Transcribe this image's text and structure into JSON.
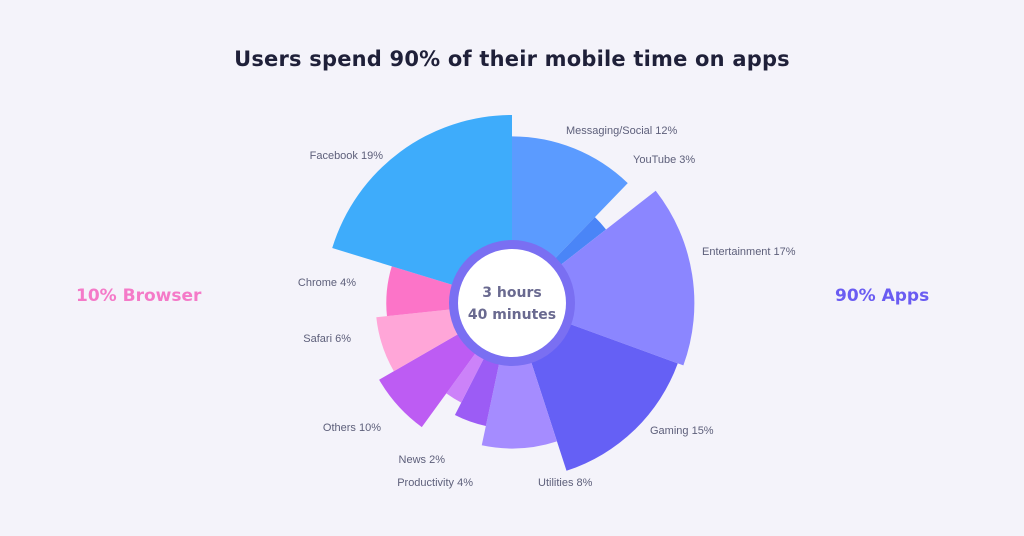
{
  "title": "Users spend 90% of their mobile time on apps",
  "left_label": "10% Browser",
  "right_label": "90% Apps",
  "colors": {
    "browser_accent": "#f47ac8",
    "apps_accent": "#6a5cf2",
    "title": "#1f2039",
    "center_ring": "#7a6ff2"
  },
  "chart_data": {
    "type": "pie",
    "variant": "nightingale-rose",
    "center_text": [
      "3 hours",
      "40 minutes"
    ],
    "slices": [
      {
        "label": "Messaging/Social 12%",
        "value": 12,
        "color": "#5b9bff"
      },
      {
        "label": "YouTube 3%",
        "value": 3,
        "color": "#4a85f7"
      },
      {
        "label": "Entertainment 17%",
        "value": 17,
        "color": "#8b86ff"
      },
      {
        "label": "Gaming 15%",
        "value": 15,
        "color": "#6560f5"
      },
      {
        "label": "Utilities 8%",
        "value": 8,
        "color": "#a58cff"
      },
      {
        "label": "Productivity 4%",
        "value": 4,
        "color": "#9c5cf5"
      },
      {
        "label": "News 2%",
        "value": 2,
        "color": "#cc82f9"
      },
      {
        "label": "Others 10%",
        "value": 10,
        "color": "#bd5cf3"
      },
      {
        "label": "Safari 6%",
        "value": 6,
        "color": "#ffa6d8"
      },
      {
        "label": "Chrome 4%",
        "value": 4,
        "color": "#fc74c8"
      },
      {
        "label": "Facebook 19%",
        "value": 19,
        "color": "#3eacfb"
      }
    ]
  }
}
